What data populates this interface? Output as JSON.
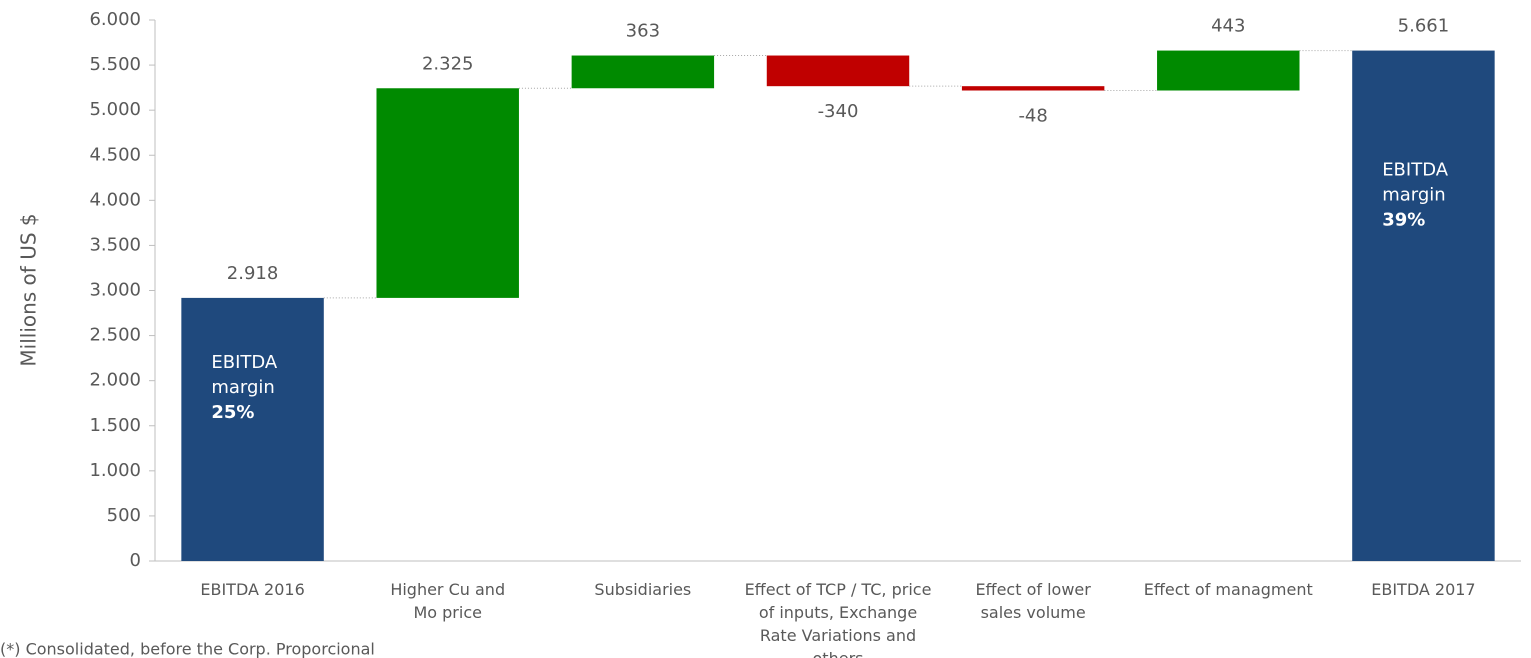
{
  "chart_data": {
    "type": "waterfall",
    "y_label": "Millions of US $",
    "categories": [
      "EBITDA 2016",
      "Higher Cu and Mo price",
      "Subsidiaries",
      "Effect of TCP / TC, price of inputs, Exchange Rate Variations and others",
      "Effect of lower sales volume",
      "Effect of managment",
      "EBITDA 2017"
    ],
    "values": [
      2918,
      2325,
      363,
      -340,
      -48,
      443,
      5661
    ],
    "value_labels": [
      "2.918",
      "2.325",
      "363",
      "-340",
      "-48",
      "443",
      "5.661"
    ],
    "is_total": [
      true,
      false,
      false,
      false,
      false,
      false,
      true
    ],
    "colors": {
      "total": "#1f497d",
      "increase": "#008a00",
      "decrease": "#c00000"
    },
    "ylim": [
      0,
      6000
    ],
    "yticks": [
      0,
      500,
      {
        "value": 1000,
        "label": "1.000"
      },
      {
        "value": 1500,
        "label": "1.500"
      },
      {
        "value": 2000,
        "label": "2.000"
      },
      {
        "value": 2500,
        "label": "2.500"
      },
      {
        "value": 3000,
        "label": "3.000"
      },
      {
        "value": 3500,
        "label": "3.500"
      },
      {
        "value": 4000,
        "label": "4.000"
      },
      {
        "value": 4500,
        "label": "4.500"
      },
      {
        "value": 5000,
        "label": "5.000"
      },
      {
        "value": 5500,
        "label": "5.500"
      },
      {
        "value": 6000,
        "label": "6.000"
      }
    ],
    "annotations": [
      {
        "at": "EBITDA 2016",
        "text": "EBITDA margin",
        "bold": "25%"
      },
      {
        "at": "EBITDA 2017",
        "text": "EBITDA margin",
        "bold": "39%"
      }
    ],
    "footnote": "(*) Consolidated, before the Corp. Proporcional"
  }
}
